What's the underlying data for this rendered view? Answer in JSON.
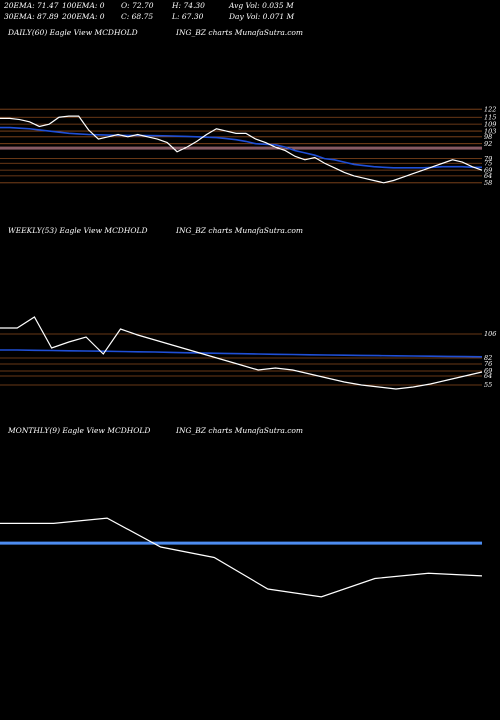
{
  "header": {
    "row1": [
      "20EMA: 71.47",
      "100EMA: 0",
      "O: 72.70",
      "H: 74.30",
      "Avg Vol: 0.035 M"
    ],
    "row2": [
      "30EMA: 87.89",
      "200EMA: 0",
      "C: 68.75",
      "L: 67.30",
      "Day Vol: 0.071 M"
    ]
  },
  "colors": {
    "background": "#000000",
    "price_line": "#ffffff",
    "ema_line": "#1f4fd6",
    "support_lines": "#8a4a1e",
    "pink_line": "#d58fa0",
    "monthly_ema": "#4d8cf0"
  },
  "panels": {
    "daily": {
      "label_left": "DAILY(60) Eagle   View  MCDHOLD",
      "label_right": "ING_BZ charts MunafaSutra.com"
    },
    "weekly": {
      "label_left": "WEEKLY(53) Eagle   View  MCDHOLD",
      "label_right": "ING_BZ charts MunafaSutra.com"
    },
    "monthly": {
      "label_left": "MONTHLY(9) Eagle   View  MCDHOLD",
      "label_right": "ING_BZ charts MunafaSutra.com"
    }
  },
  "chart_data": [
    {
      "name": "DAILY(60)",
      "type": "line",
      "yticks": [
        122,
        115,
        109,
        103,
        98,
        92,
        79,
        75,
        69,
        64,
        58
      ],
      "ylim": [
        50,
        130
      ],
      "x": [
        0,
        1,
        2,
        3,
        4,
        5,
        6,
        7,
        8,
        9,
        10,
        11,
        12,
        13,
        14,
        15,
        16,
        17,
        18,
        19,
        20,
        21,
        22,
        23,
        24,
        25,
        26,
        27,
        28,
        29,
        30,
        31,
        32,
        33,
        34,
        35,
        36,
        37,
        38,
        39,
        40,
        41,
        42,
        43,
        44,
        45,
        46,
        47,
        48,
        49
      ],
      "series": [
        {
          "key": "price",
          "values": [
            114,
            114,
            113,
            111,
            107,
            109,
            115,
            116,
            116,
            104,
            96,
            98,
            100,
            98,
            100,
            98,
            96,
            93,
            85,
            89,
            94,
            100,
            105,
            103,
            101,
            101,
            96,
            93,
            89,
            86,
            81,
            78,
            80,
            75,
            71,
            67,
            64,
            62,
            60,
            58,
            60,
            63,
            66,
            69,
            72,
            75,
            78,
            76,
            72,
            69
          ]
        },
        {
          "key": "ema",
          "values": [
            106,
            106,
            105.5,
            105,
            104,
            103,
            102,
            101,
            100.5,
            100,
            99.7,
            99.5,
            99.3,
            99.2,
            99.2,
            99.1,
            99,
            98.8,
            98.5,
            98.3,
            98,
            97.7,
            97.3,
            96.5,
            95.5,
            94,
            92,
            91.5,
            91,
            89,
            86,
            84,
            82,
            79,
            78,
            76,
            74,
            73,
            72,
            71.5,
            71,
            71,
            71,
            71,
            71.5,
            72,
            72,
            72,
            71.5,
            71.5
          ]
        }
      ],
      "horizontal_lines": [
        122,
        115,
        109,
        103,
        98,
        92,
        79,
        75,
        69,
        64,
        58
      ],
      "pink_lines": [
        87.5,
        89
      ]
    },
    {
      "name": "WEEKLY(53)",
      "type": "line",
      "yticks": [
        106,
        82,
        76,
        69,
        64,
        55
      ],
      "ylim": [
        45,
        140
      ],
      "x": [
        0,
        1,
        2,
        3,
        4,
        5,
        6,
        7,
        8,
        9,
        10,
        11,
        12,
        13,
        14,
        15,
        16,
        17,
        18,
        19,
        20,
        21,
        22,
        23,
        24,
        25,
        26,
        27,
        28
      ],
      "series": [
        {
          "key": "price",
          "values": [
            112,
            112,
            123,
            92,
            98,
            103,
            86,
            111,
            105,
            100,
            95,
            90,
            85,
            80,
            75,
            70,
            72,
            70,
            66,
            62,
            58,
            55,
            53,
            51,
            53,
            56,
            60,
            64,
            68
          ]
        },
        {
          "key": "ema",
          "values": [
            90,
            90,
            89.7,
            89.5,
            89.2,
            89,
            88.8,
            88.5,
            88.2,
            88,
            87.6,
            87.2,
            86.9,
            86.6,
            86.3,
            86,
            85.7,
            85.5,
            85.2,
            85,
            84.8,
            84.6,
            84.4,
            84.2,
            84,
            83.8,
            83.6,
            83.4,
            83.2
          ]
        }
      ],
      "horizontal_lines": [
        106,
        82,
        76,
        69,
        64,
        55
      ]
    },
    {
      "name": "MONTHLY(9)",
      "type": "line",
      "yticks": [],
      "x": [
        0,
        1,
        2,
        3,
        4,
        5,
        6,
        7,
        8,
        9
      ],
      "series": [
        {
          "key": "price",
          "values": [
            100,
            100,
            104,
            82,
            74,
            50,
            44,
            58,
            62,
            60
          ]
        },
        {
          "key": "ema",
          "values": [
            85,
            85,
            85,
            85,
            85,
            85,
            85,
            85,
            85,
            85
          ]
        }
      ]
    }
  ]
}
